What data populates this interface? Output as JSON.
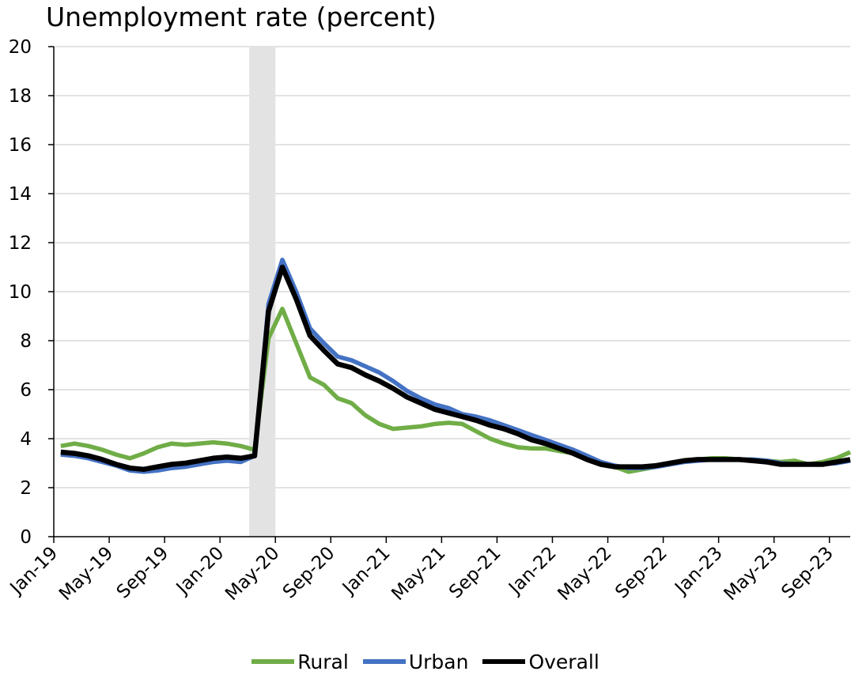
{
  "chart_data": {
    "type": "line",
    "title": "Unemployment rate (percent)",
    "xlabel": "",
    "ylabel": "",
    "ylim": [
      0,
      20
    ],
    "yticks": [
      "0",
      "2",
      "4",
      "6",
      "8",
      "10",
      "12",
      "14",
      "16",
      "18",
      "20"
    ],
    "x": [
      "Jan-19",
      "Feb-19",
      "Mar-19",
      "Apr-19",
      "May-19",
      "Jun-19",
      "Jul-19",
      "Aug-19",
      "Sep-19",
      "Oct-19",
      "Nov-19",
      "Dec-19",
      "Jan-20",
      "Feb-20",
      "Mar-20",
      "Apr-20",
      "May-20",
      "Jun-20",
      "Jul-20",
      "Aug-20",
      "Sep-20",
      "Oct-20",
      "Nov-20",
      "Dec-20",
      "Jan-21",
      "Feb-21",
      "Mar-21",
      "Apr-21",
      "May-21",
      "Jun-21",
      "Jul-21",
      "Aug-21",
      "Sep-21",
      "Oct-21",
      "Nov-21",
      "Dec-21",
      "Jan-22",
      "Feb-22",
      "Mar-22",
      "Apr-22",
      "May-22",
      "Jun-22",
      "Jul-22",
      "Aug-22",
      "Sep-22",
      "Oct-22",
      "Nov-22",
      "Dec-22",
      "Jan-23",
      "Feb-23",
      "Mar-23",
      "Apr-23",
      "May-23",
      "Jun-23",
      "Jul-23",
      "Aug-23",
      "Sep-23",
      "Oct-23"
    ],
    "xtick_labels": [
      "Jan-19",
      "May-19",
      "Sep-19",
      "Jan-20",
      "May-20",
      "Sep-20",
      "Jan-21",
      "May-21",
      "Sep-21",
      "Jan-22",
      "May-22",
      "Sep-22",
      "Jan-23",
      "May-23",
      "Sep-23"
    ],
    "shaded_region": [
      "Mar-20",
      "Apr-20"
    ],
    "grid": "horizontal",
    "legend_position": "bottom",
    "series": [
      {
        "name": "Rural",
        "color": "#70ad47",
        "values": [
          3.7,
          3.8,
          3.7,
          3.55,
          3.35,
          3.2,
          3.4,
          3.65,
          3.8,
          3.75,
          3.8,
          3.85,
          3.8,
          3.7,
          3.55,
          8.1,
          9.3,
          7.9,
          6.5,
          6.2,
          5.65,
          5.45,
          4.95,
          4.6,
          4.4,
          4.45,
          4.5,
          4.6,
          4.65,
          4.6,
          4.3,
          4.0,
          3.8,
          3.65,
          3.6,
          3.6,
          3.5,
          3.4,
          3.2,
          2.95,
          2.85,
          2.65,
          2.75,
          2.85,
          2.95,
          3.1,
          3.15,
          3.2,
          3.2,
          3.15,
          3.15,
          3.1,
          3.05,
          3.1,
          2.95,
          3.05,
          3.2,
          3.45
        ]
      },
      {
        "name": "Urban",
        "color": "#4472c4",
        "values": [
          3.35,
          3.3,
          3.2,
          3.05,
          2.9,
          2.7,
          2.65,
          2.7,
          2.8,
          2.85,
          2.95,
          3.05,
          3.1,
          3.05,
          3.3,
          9.5,
          11.3,
          10.0,
          8.5,
          7.9,
          7.35,
          7.2,
          6.95,
          6.7,
          6.35,
          5.95,
          5.65,
          5.4,
          5.25,
          5.0,
          4.9,
          4.75,
          4.55,
          4.35,
          4.15,
          3.95,
          3.75,
          3.55,
          3.3,
          3.05,
          2.9,
          2.8,
          2.8,
          2.85,
          2.95,
          3.05,
          3.1,
          3.15,
          3.15,
          3.15,
          3.15,
          3.1,
          3.0,
          2.95,
          2.95,
          2.95,
          3.0,
          3.1
        ]
      },
      {
        "name": "Overall",
        "color": "#000000",
        "values": [
          3.45,
          3.4,
          3.3,
          3.15,
          2.95,
          2.8,
          2.75,
          2.85,
          2.95,
          3.0,
          3.1,
          3.2,
          3.25,
          3.2,
          3.3,
          9.2,
          11.0,
          9.7,
          8.2,
          7.6,
          7.05,
          6.9,
          6.6,
          6.35,
          6.05,
          5.7,
          5.45,
          5.2,
          5.05,
          4.9,
          4.75,
          4.55,
          4.4,
          4.2,
          3.95,
          3.8,
          3.6,
          3.4,
          3.15,
          2.95,
          2.85,
          2.85,
          2.85,
          2.9,
          3.0,
          3.1,
          3.15,
          3.15,
          3.15,
          3.15,
          3.1,
          3.05,
          2.95,
          2.95,
          2.95,
          2.95,
          3.05,
          3.15
        ]
      }
    ]
  }
}
